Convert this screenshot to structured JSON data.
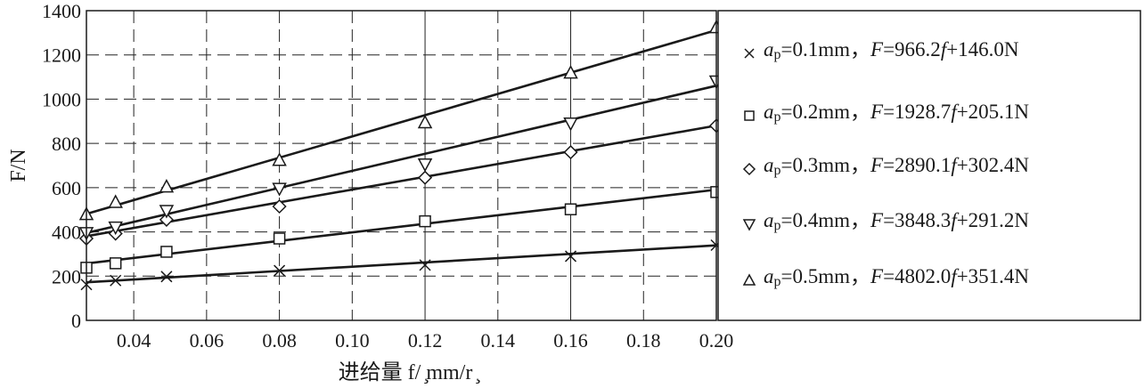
{
  "chart_data": {
    "type": "scatter",
    "title": "",
    "xlabel": "进给量 f/ ̧mm/r ̧",
    "ylabel": "F/N",
    "xlim": [
      0.027,
      0.2
    ],
    "ylim": [
      0,
      1400
    ],
    "xticks": [
      0.04,
      0.06,
      0.08,
      0.1,
      0.12,
      0.14,
      0.16,
      0.18,
      0.2
    ],
    "xtick_labels": [
      "0.04",
      "0.06",
      "0.08",
      "0.10",
      "0.12",
      "0.14",
      "0.16",
      "0.18",
      "0.20"
    ],
    "yticks": [
      0,
      200,
      400,
      600,
      800,
      1000,
      1200,
      1400
    ],
    "ytick_labels": [
      "0",
      "200",
      "400",
      "600",
      "800",
      "1000",
      "1200",
      "1400"
    ],
    "grid": true,
    "legend_position": "right",
    "series": [
      {
        "name": "ap=0.1mm",
        "marker": "x",
        "fit": {
          "slope": 966.2,
          "intercept": 146.0
        },
        "legend": {
          "a": "a",
          "sub": "p",
          "cond": "=0.1mm，",
          "F": "F",
          "eq1": "=966.2",
          "f": "f",
          "eq2": "+146.0N"
        },
        "points": [
          [
            0.027,
            162
          ],
          [
            0.035,
            180
          ],
          [
            0.049,
            198
          ],
          [
            0.08,
            225
          ],
          [
            0.12,
            250
          ],
          [
            0.16,
            290
          ],
          [
            0.2,
            340
          ]
        ]
      },
      {
        "name": "ap=0.2mm",
        "marker": "square",
        "fit": {
          "slope": 1928.7,
          "intercept": 205.1
        },
        "legend": {
          "a": "a",
          "sub": "p",
          "cond": "=0.2mm，",
          "F": "F",
          "eq1": "=1928.7",
          "f": "f",
          "eq2": "+205.1N"
        },
        "points": [
          [
            0.027,
            238
          ],
          [
            0.035,
            258
          ],
          [
            0.049,
            310
          ],
          [
            0.08,
            370
          ],
          [
            0.12,
            448
          ],
          [
            0.16,
            502
          ],
          [
            0.2,
            580
          ]
        ]
      },
      {
        "name": "ap=0.3mm",
        "marker": "diamond",
        "fit": {
          "slope": 2890.1,
          "intercept": 302.4
        },
        "legend": {
          "a": "a",
          "sub": "p",
          "cond": "=0.3mm，",
          "F": "F",
          "eq1": "=2890.1",
          "f": "f",
          "eq2": "+302.4N"
        },
        "points": [
          [
            0.027,
            370
          ],
          [
            0.035,
            392
          ],
          [
            0.049,
            455
          ],
          [
            0.08,
            515
          ],
          [
            0.12,
            645
          ],
          [
            0.16,
            760
          ],
          [
            0.2,
            880
          ]
        ]
      },
      {
        "name": "ap=0.4mm",
        "marker": "triangle-down",
        "fit": {
          "slope": 3848.3,
          "intercept": 291.2
        },
        "legend": {
          "a": "a",
          "sub": "p",
          "cond": "=0.4mm，",
          "F": "F",
          "eq1": "=3848.3",
          "f": "f",
          "eq2": "+291.2N"
        },
        "points": [
          [
            0.027,
            395
          ],
          [
            0.035,
            420
          ],
          [
            0.049,
            495
          ],
          [
            0.08,
            595
          ],
          [
            0.12,
            705
          ],
          [
            0.16,
            890
          ],
          [
            0.2,
            1080
          ]
        ]
      },
      {
        "name": "ap=0.5mm",
        "marker": "triangle-up",
        "fit": {
          "slope": 4802.0,
          "intercept": 351.4
        },
        "legend": {
          "a": "a",
          "sub": "p",
          "cond": "=0.5mm，",
          "F": "F",
          "eq1": "=4802.0",
          "f": "f",
          "eq2": "+351.4N"
        },
        "points": [
          [
            0.027,
            480
          ],
          [
            0.035,
            535
          ],
          [
            0.049,
            605
          ],
          [
            0.08,
            725
          ],
          [
            0.12,
            895
          ],
          [
            0.16,
            1120
          ],
          [
            0.2,
            1325
          ]
        ]
      }
    ]
  }
}
